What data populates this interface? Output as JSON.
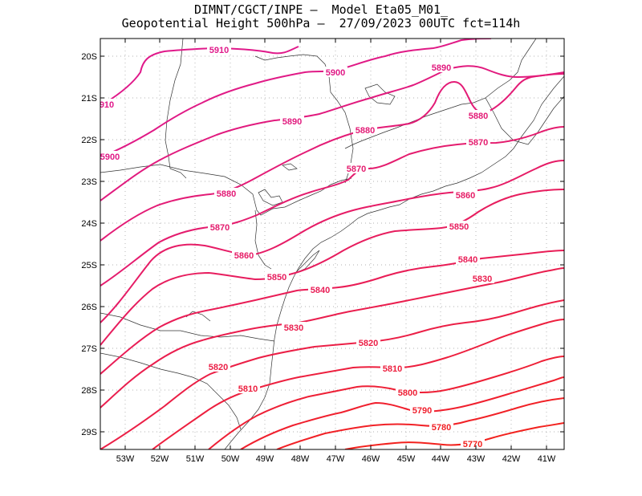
{
  "title": {
    "line1": "DIMNT/CGCT/INPE –  Model Eta05_M01_",
    "line2": "Geopotential Height 500hPa –  27/09/2023 00UTC fct=114h"
  },
  "lat_ticks": [
    "20S",
    "21S",
    "22S",
    "23S",
    "24S",
    "25S",
    "26S",
    "27S",
    "28S",
    "29S"
  ],
  "lon_ticks": [
    "53W",
    "52W",
    "51W",
    "50W",
    "49W",
    "48W",
    "47W",
    "46W",
    "45W",
    "44W",
    "43W",
    "42W",
    "41W"
  ],
  "colors": {
    "5910": "#e0198a",
    "5900": "#e01a86",
    "5890": "#e11a7e",
    "5880": "#e31b76",
    "5870": "#e41c6e",
    "5860": "#e61c66",
    "5850": "#e71d5e",
    "5840": "#e91d56",
    "5830": "#ea1e4e",
    "5820": "#eb1f46",
    "5810": "#ed1f3e",
    "5800": "#ee2036",
    "5790": "#f0202e",
    "5780": "#f12126",
    "5770": "#f2221e"
  },
  "contours": [
    {
      "value": "5910",
      "labels": [
        "5910",
        "910"
      ]
    },
    {
      "value": "5900",
      "labels": [
        "5900",
        "5900"
      ]
    },
    {
      "value": "5890",
      "labels": [
        "5890",
        "5890"
      ]
    },
    {
      "value": "5880",
      "labels": [
        "5880",
        "5880",
        "5880"
      ]
    },
    {
      "value": "5870",
      "labels": [
        "5870",
        "5870",
        "5870"
      ]
    },
    {
      "value": "5860",
      "labels": [
        "5860",
        "5860"
      ]
    },
    {
      "value": "5850",
      "labels": [
        "5850",
        "5850"
      ]
    },
    {
      "value": "5840",
      "labels": [
        "5840",
        "5840"
      ]
    },
    {
      "value": "5830",
      "labels": [
        "5830",
        "5830"
      ]
    },
    {
      "value": "5820",
      "labels": [
        "5820",
        "5820"
      ]
    },
    {
      "value": "5810",
      "labels": [
        "5810",
        "5810"
      ]
    },
    {
      "value": "5800",
      "labels": [
        "5800"
      ]
    },
    {
      "value": "5790",
      "labels": [
        "5790"
      ]
    },
    {
      "value": "5780",
      "labels": [
        "5780"
      ]
    },
    {
      "value": "5770",
      "labels": [
        "5770"
      ]
    }
  ]
}
